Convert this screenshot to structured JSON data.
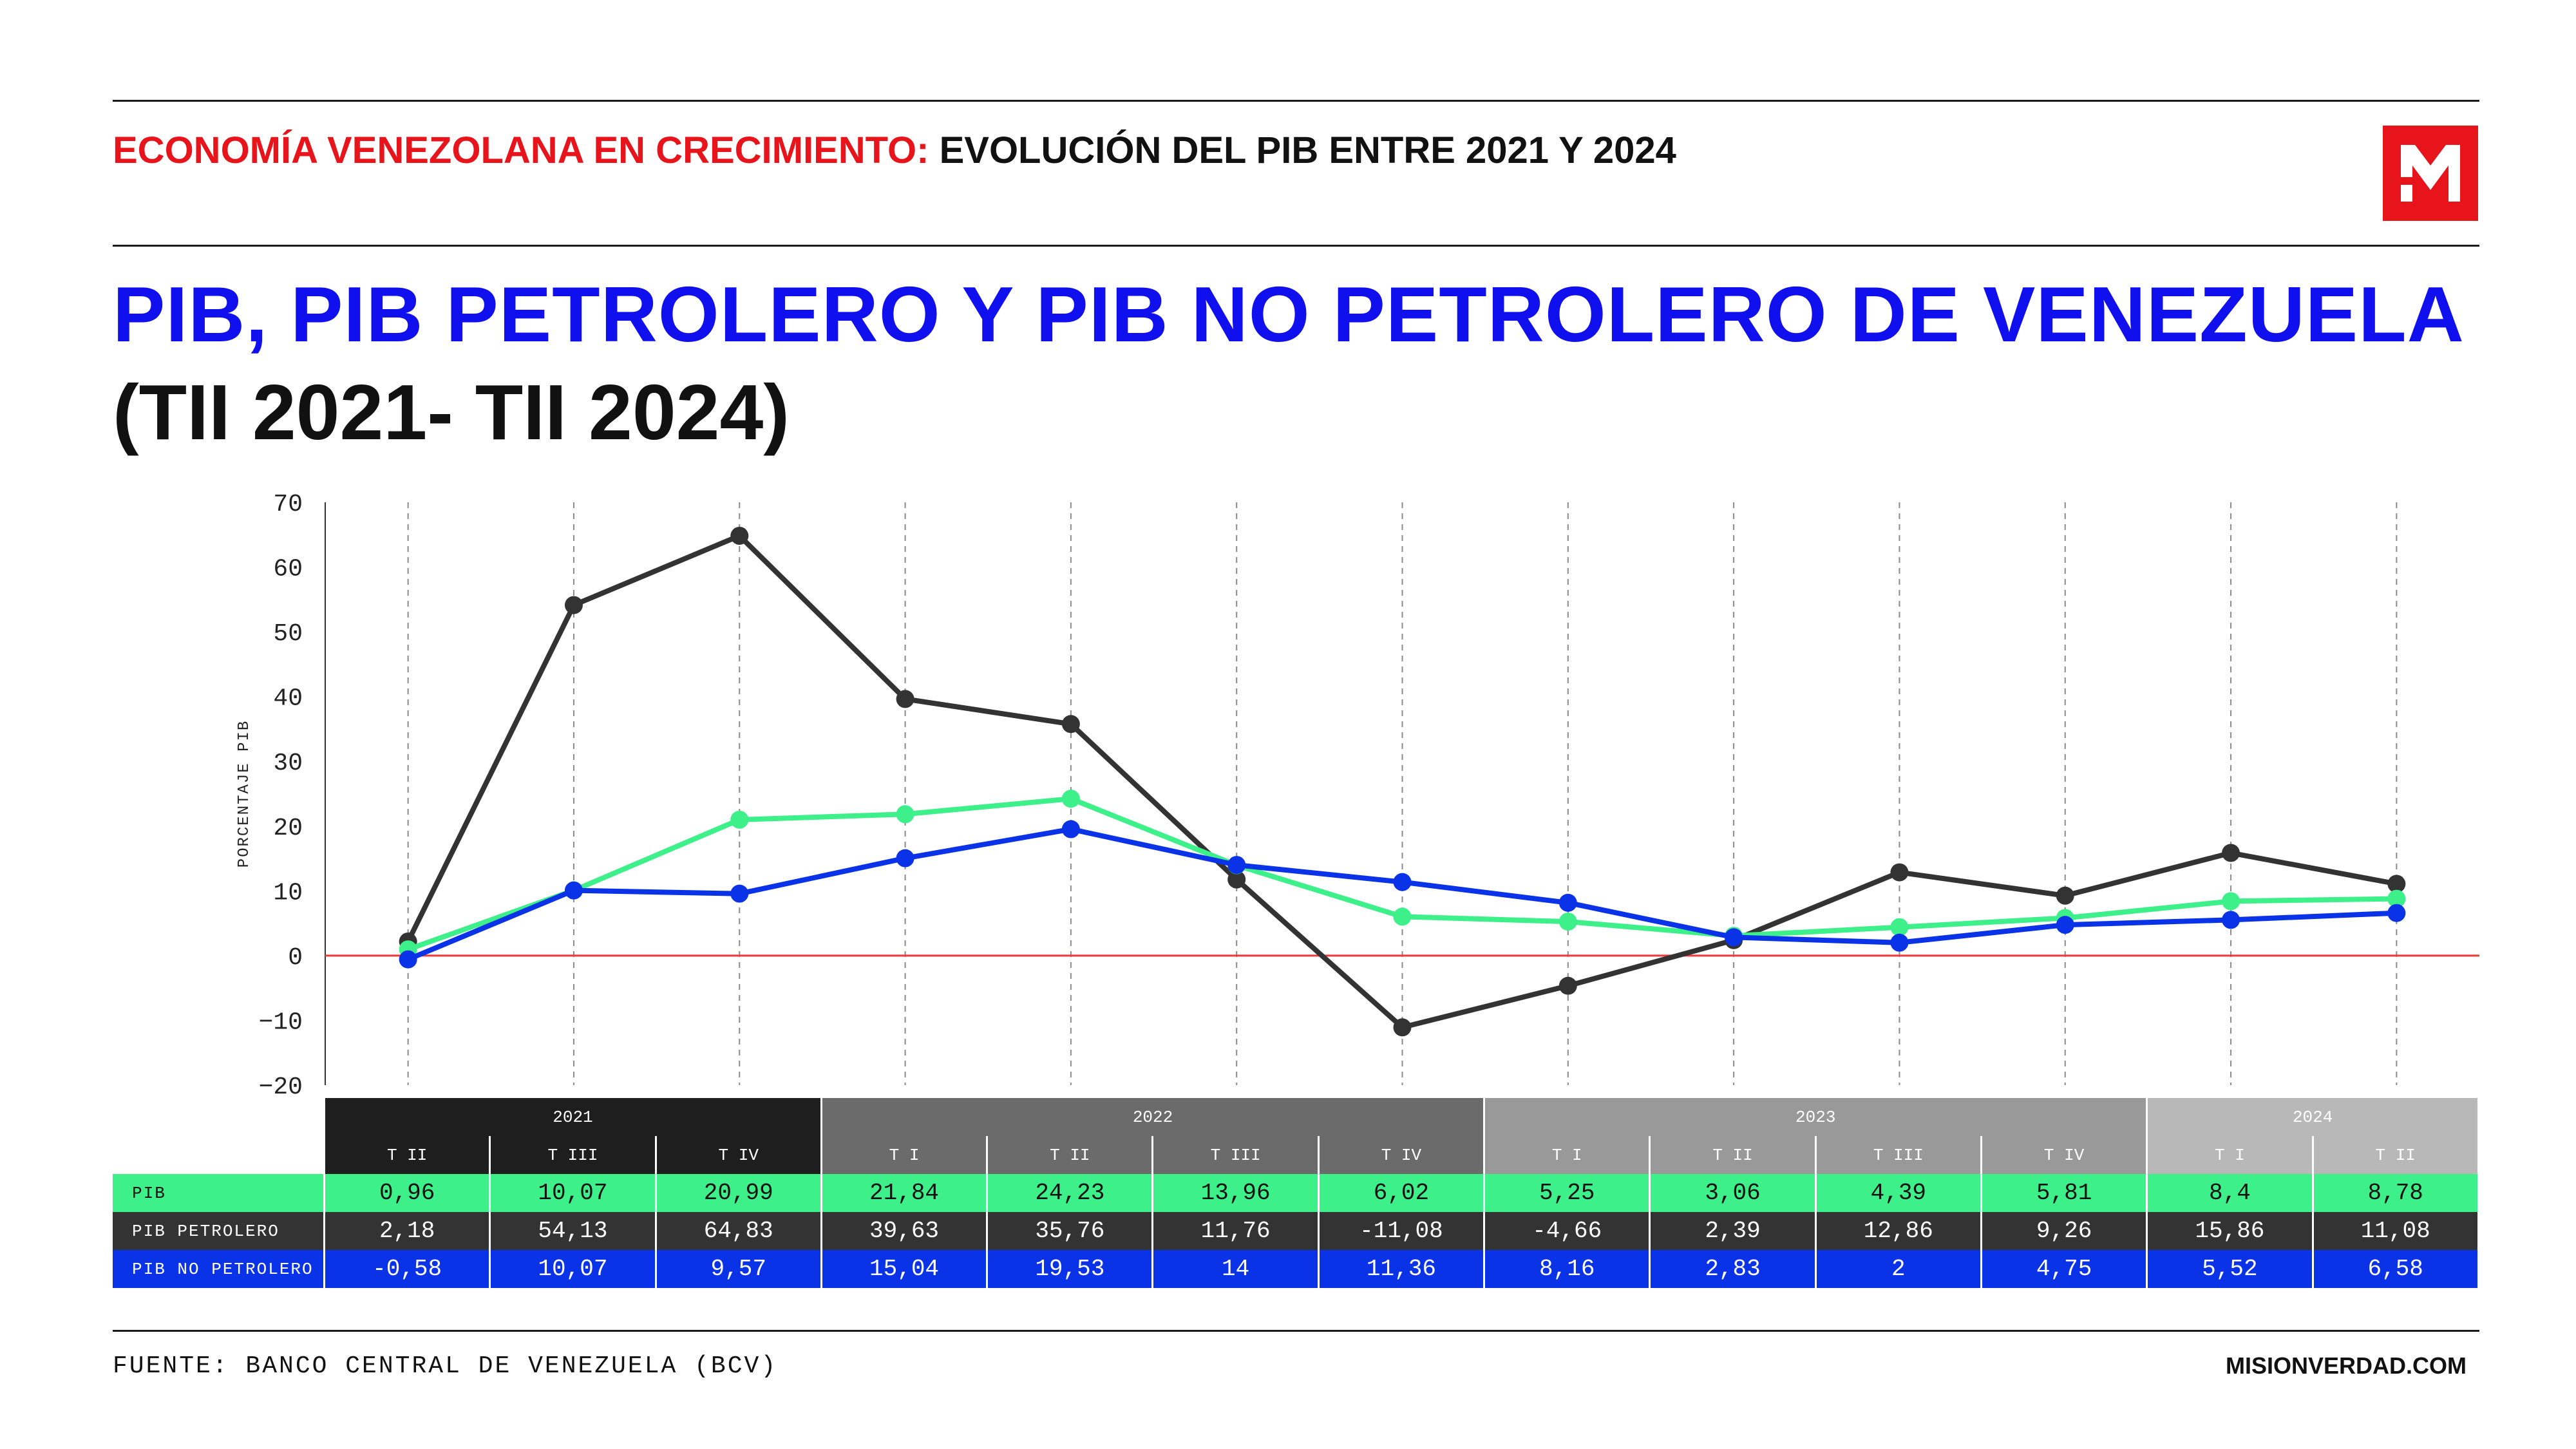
{
  "header": {
    "kicker_highlight": "ECONOMÍA VENEZOLANA EN CRECIMIENTO:",
    "kicker_rest": " EVOLUCIÓN DEL PIB ENTRE 2021 Y 2024",
    "title_line1": "PIB, PIB PETROLERO Y PIB NO PETROLERO DE VENEZUELA",
    "title_line2": "(TII 2021- TII 2024)"
  },
  "colors": {
    "accent_red": "#e8141b",
    "title_blue": "#1010ee",
    "pib": "#3ef08a",
    "pib_petrolero": "#333333",
    "pib_no_petrolero": "#0a32e6",
    "year_2021": "#1e1e1e",
    "year_2022": "#6b6b6b",
    "year_2023": "#999999",
    "year_2024": "#b8b8b8"
  },
  "chart_data": {
    "type": "line",
    "ylabel": "PORCENTAJE PIB",
    "ylim": [
      -20,
      70
    ],
    "yticks": [
      70,
      60,
      50,
      40,
      30,
      20,
      10,
      0,
      -10,
      -20
    ],
    "grid": "vertical dashed",
    "years": [
      {
        "label": "2021",
        "span": 3
      },
      {
        "label": "2022",
        "span": 4
      },
      {
        "label": "2023",
        "span": 4
      },
      {
        "label": "2024",
        "span": 2
      }
    ],
    "categories": [
      "T II",
      "T III",
      "T IV",
      "T I",
      "T II",
      "T III",
      "T IV",
      "T I",
      "T II",
      "T III",
      "T IV",
      "T I",
      "T II"
    ],
    "series": [
      {
        "name": "PIB",
        "values": [
          0.96,
          10.07,
          20.99,
          21.84,
          24.23,
          13.96,
          6.02,
          5.25,
          3.06,
          4.39,
          5.81,
          8.4,
          8.78
        ],
        "labels": [
          "0,96",
          "10,07",
          "20,99",
          "21,84",
          "24,23",
          "13,96",
          "6,02",
          "5,25",
          "3,06",
          "4,39",
          "5,81",
          "8,4",
          "8,78"
        ]
      },
      {
        "name": "PIB PETROLERO",
        "values": [
          2.18,
          54.13,
          64.83,
          39.63,
          35.76,
          11.76,
          -11.08,
          -4.66,
          2.39,
          12.86,
          9.26,
          15.86,
          11.08
        ],
        "labels": [
          "2,18",
          "54,13",
          "64,83",
          "39,63",
          "35,76",
          "11,76",
          "-11,08",
          "-4,66",
          "2,39",
          "12,86",
          "9,26",
          "15,86",
          "11,08"
        ]
      },
      {
        "name": "PIB NO PETROLERO",
        "values": [
          -0.58,
          10.07,
          9.57,
          15.04,
          19.53,
          14,
          11.36,
          8.16,
          2.83,
          2,
          4.75,
          5.52,
          6.58
        ],
        "labels": [
          "-0,58",
          "10,07",
          "9,57",
          "15,04",
          "19,53",
          "14",
          "11,36",
          "8,16",
          "2,83",
          "2",
          "4,75",
          "5,52",
          "6,58"
        ]
      }
    ]
  },
  "footer": {
    "source": "FUENTE: BANCO CENTRAL DE VENEZUELA (BCV)",
    "site": "MISIONVERDAD.COM"
  }
}
